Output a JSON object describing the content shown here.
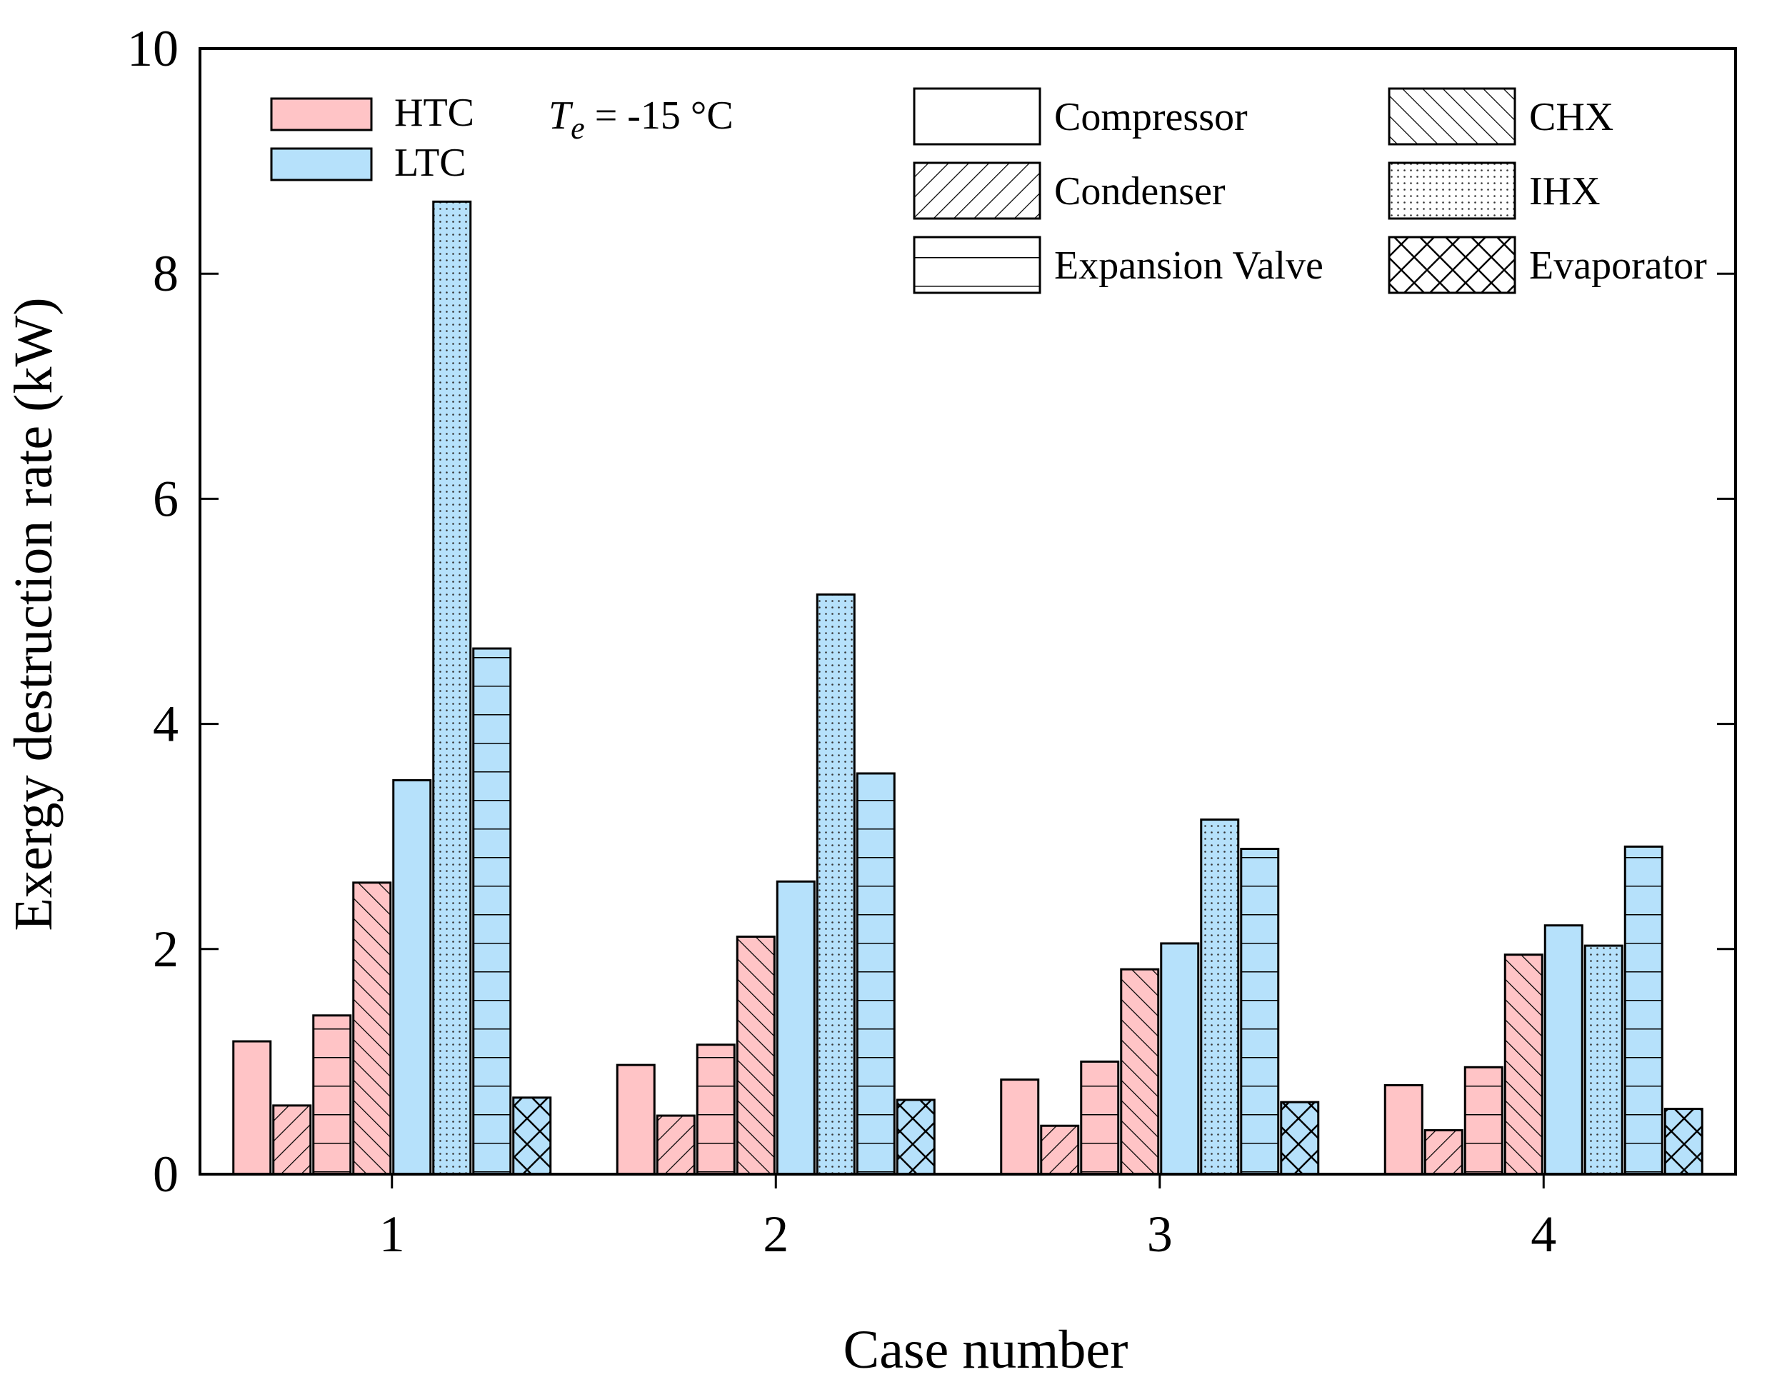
{
  "chart_data": {
    "type": "bar",
    "title": "",
    "xlabel": "Case number",
    "ylabel": "Exergy destruction rate (kW)",
    "ylim": [
      0,
      10
    ],
    "yticks": [
      0,
      2,
      4,
      6,
      8,
      10
    ],
    "grid": false,
    "categories": [
      "1",
      "2",
      "3",
      "4"
    ],
    "annotation": {
      "var": "T",
      "sub": "e",
      "rest": " = -15 °C"
    },
    "cycle_legend": [
      {
        "label": "HTC",
        "color": "#ffc4c6"
      },
      {
        "label": "LTC",
        "color": "#b6e1fb"
      }
    ],
    "component_legend": [
      {
        "label": "Compressor",
        "pattern": "none"
      },
      {
        "label": "Condenser",
        "pattern": "diag-up"
      },
      {
        "label": "Expansion Valve",
        "pattern": "horizontal"
      },
      {
        "label": "CHX",
        "pattern": "diag-down"
      },
      {
        "label": "IHX",
        "pattern": "dots"
      },
      {
        "label": "Evaporator",
        "pattern": "cross"
      }
    ],
    "series": [
      {
        "name": "HTC Compressor",
        "cycle": "HTC",
        "pattern": "none",
        "values": [
          1.18,
          0.97,
          0.84,
          0.79
        ]
      },
      {
        "name": "HTC Condenser",
        "cycle": "HTC",
        "pattern": "diag-up",
        "values": [
          0.61,
          0.52,
          0.43,
          0.39
        ]
      },
      {
        "name": "HTC Expansion Valve",
        "cycle": "HTC",
        "pattern": "horizontal",
        "values": [
          1.41,
          1.15,
          1.0,
          0.95
        ]
      },
      {
        "name": "CHX",
        "cycle": "HTC",
        "pattern": "diag-down",
        "values": [
          2.59,
          2.11,
          1.82,
          1.95
        ]
      },
      {
        "name": "LTC Compressor",
        "cycle": "LTC",
        "pattern": "none",
        "values": [
          3.5,
          2.6,
          2.05,
          2.21
        ]
      },
      {
        "name": "IHX",
        "cycle": "LTC",
        "pattern": "dots",
        "values": [
          8.64,
          5.15,
          3.15,
          2.03
        ]
      },
      {
        "name": "LTC Expansion Valve",
        "cycle": "LTC",
        "pattern": "horizontal",
        "values": [
          4.67,
          3.56,
          2.89,
          2.91
        ]
      },
      {
        "name": "Evaporator",
        "cycle": "LTC",
        "pattern": "cross",
        "values": [
          0.68,
          0.66,
          0.64,
          0.58
        ]
      }
    ]
  }
}
